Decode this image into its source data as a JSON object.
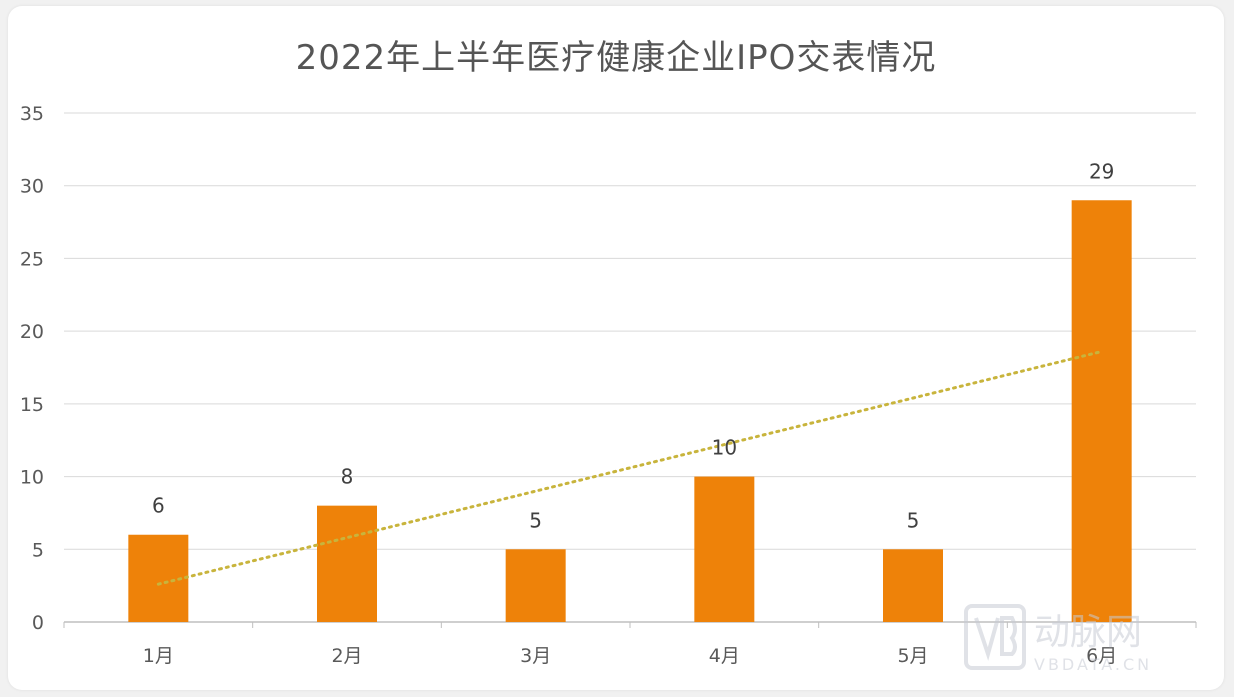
{
  "chart_data": {
    "type": "bar",
    "title": "2022年上半年医疗健康企业IPO交表情况",
    "categories": [
      "1月",
      "2月",
      "3月",
      "4月",
      "5月",
      "6月"
    ],
    "values": [
      6,
      8,
      5,
      10,
      5,
      29
    ],
    "data_labels": [
      "6",
      "8",
      "5",
      "10",
      "5",
      "29"
    ],
    "ylim": [
      0,
      35
    ],
    "yticks": [
      0,
      5,
      10,
      15,
      20,
      25,
      30,
      35
    ],
    "grid": true,
    "legend": "none",
    "trendline": {
      "type": "linear",
      "style": "dotted",
      "start": 2.6,
      "end": 18.6
    },
    "colors": {
      "bar": "#EE8209",
      "trendline": "#C8B43C",
      "grid": "#D9D9D9",
      "axis": "#BFBFBF"
    }
  },
  "watermark": {
    "text": "动脉网",
    "subtext": "VBDATA.CN",
    "icon": "vb-logo-icon"
  }
}
